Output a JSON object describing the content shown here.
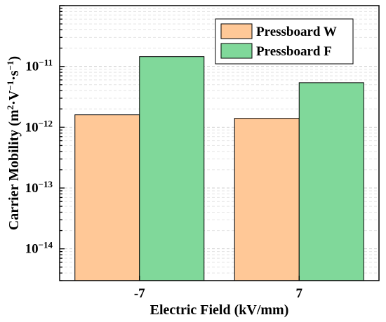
{
  "chart_data": {
    "type": "bar",
    "title": "",
    "xlabel": "Electric Field (kV/mm)",
    "ylabel_parts": {
      "prefix": "Carrier Mobility (m",
      "exp1": "2",
      "mid1": "·V",
      "exp2": "−1",
      "mid2": "·s",
      "exp3": "−1",
      "suffix": ")"
    },
    "yscale": "log",
    "ylim": [
      3e-15,
      1e-10
    ],
    "categories": [
      "-7",
      "7"
    ],
    "series": [
      {
        "name": "Pressboard W",
        "color": "#ffc897",
        "values": [
          1.6e-12,
          1.4e-12
        ]
      },
      {
        "name": "Pressboard  F",
        "color": "#80d89a",
        "values": [
          1.45e-11,
          5.4e-12
        ]
      }
    ],
    "yticks": [
      {
        "base": "10",
        "exp": "−11",
        "value": 1e-11
      },
      {
        "base": "10",
        "exp": "−12",
        "value": 1e-12
      },
      {
        "base": "10",
        "exp": "−13",
        "value": 1e-13
      },
      {
        "base": "10",
        "exp": "−14",
        "value": 1e-14
      }
    ],
    "grid": true,
    "legend_position": "top-right"
  }
}
